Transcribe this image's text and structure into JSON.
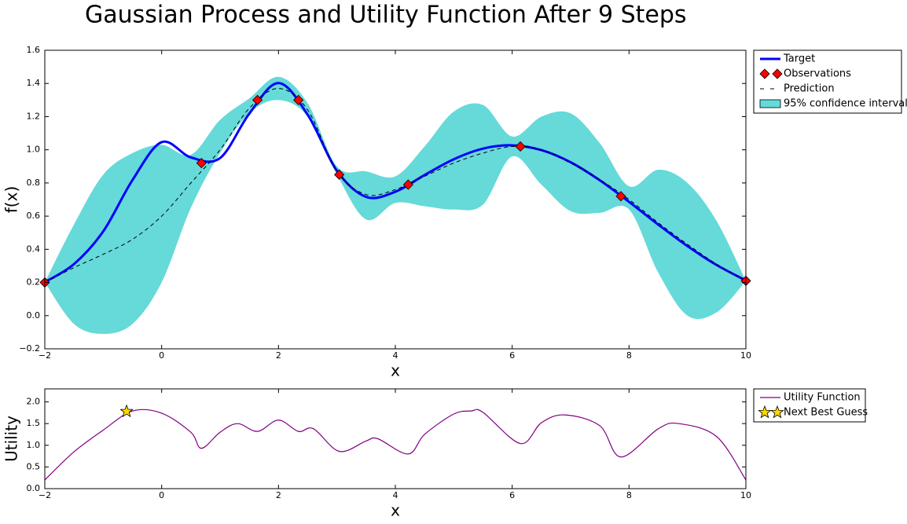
{
  "chart_data": [
    {
      "type": "line",
      "title": "Gaussian Process and Utility Function After 9 Steps",
      "xlabel": "x",
      "ylabel": "f(x)",
      "xlim": [
        -2,
        10
      ],
      "ylim": [
        -0.2,
        1.6
      ],
      "xticks": [
        {
          "value": -2,
          "label": "−2"
        },
        0,
        2,
        4,
        6,
        8,
        10
      ],
      "yticks": [
        {
          "value": -0.2,
          "label": "−0.2"
        },
        {
          "value": 0,
          "label": "0.0"
        },
        0.2,
        0.4,
        0.6,
        0.8,
        {
          "value": 1,
          "label": "1.0"
        },
        1.2,
        1.4,
        1.6
      ],
      "x": [
        -2,
        -1.5,
        -1,
        -0.5,
        0,
        0.5,
        1,
        1.5,
        2,
        2.5,
        3,
        3.5,
        4,
        4.5,
        5,
        5.5,
        6,
        6.5,
        7,
        7.5,
        8,
        8.5,
        9,
        9.5,
        10
      ],
      "band": {
        "name": "95% confidence interval",
        "color": "#66d9d9",
        "upper": [
          0.2,
          0.55,
          0.85,
          0.98,
          1.03,
          0.97,
          1.18,
          1.31,
          1.44,
          1.28,
          0.9,
          0.87,
          0.84,
          1.02,
          1.23,
          1.27,
          1.08,
          1.2,
          1.22,
          1.04,
          0.78,
          0.88,
          0.8,
          0.57,
          0.21
        ],
        "lower": [
          0.2,
          -0.05,
          -0.11,
          -0.05,
          0.2,
          0.65,
          0.98,
          1.22,
          1.3,
          1.2,
          0.85,
          0.58,
          0.68,
          0.66,
          0.64,
          0.67,
          0.96,
          0.79,
          0.63,
          0.62,
          0.64,
          0.26,
          0.0,
          0.02,
          0.21
        ]
      },
      "series": [
        {
          "name": "Target",
          "color": "#0000ff",
          "linestyle": "-",
          "values": [
            0.202,
            0.311,
            0.508,
            0.817,
            1.046,
            0.954,
            0.95,
            1.218,
            1.402,
            1.211,
            0.874,
            0.716,
            0.747,
            0.848,
            0.943,
            1.007,
            1.027,
            0.998,
            0.925,
            0.816,
            0.686,
            0.549,
            0.419,
            0.305,
            0.212
          ]
        },
        {
          "name": "Prediction",
          "color": "#000000",
          "linestyle": "--",
          "values": [
            0.2,
            0.29,
            0.37,
            0.46,
            0.6,
            0.8,
            1.0,
            1.25,
            1.37,
            1.24,
            0.87,
            0.73,
            0.76,
            0.84,
            0.92,
            0.98,
            1.02,
            1.0,
            0.92,
            0.82,
            0.7,
            0.56,
            0.43,
            0.31,
            0.21
          ]
        }
      ],
      "markers": {
        "name": "Observations",
        "color": "#ff0000",
        "shape": "diamond",
        "x": [
          -2,
          0.68,
          1.64,
          2.34,
          3.04,
          4.22,
          6.14,
          7.86,
          10
        ],
        "values": [
          0.2,
          0.92,
          1.3,
          1.3,
          0.85,
          0.79,
          1.02,
          0.72,
          0.21
        ]
      }
    },
    {
      "type": "line",
      "xlabel": "x",
      "ylabel": "Utility",
      "xlim": [
        -2,
        10
      ],
      "ylim": [
        0,
        2.3
      ],
      "xticks": [
        {
          "value": -2,
          "label": "−2"
        },
        0,
        2,
        4,
        6,
        8,
        10
      ],
      "yticks": [
        {
          "value": 0,
          "label": "0.0"
        },
        0.5,
        {
          "value": 1,
          "label": "1.0"
        },
        1.5,
        {
          "value": 2,
          "label": "2.0"
        }
      ],
      "x": [
        -2,
        -1.5,
        -1,
        -0.5,
        0,
        0.5,
        0.68,
        1,
        1.3,
        1.64,
        2,
        2.34,
        2.6,
        3.04,
        3.5,
        3.7,
        4.22,
        4.5,
        5,
        5.3,
        5.5,
        6.14,
        6.5,
        6.9,
        7.5,
        7.86,
        8.5,
        8.85,
        9.5,
        10
      ],
      "series": [
        {
          "name": "Utility Function",
          "color": "#800080",
          "linestyle": "-",
          "values": [
            0.2,
            0.85,
            1.35,
            1.79,
            1.74,
            1.3,
            0.93,
            1.3,
            1.5,
            1.32,
            1.58,
            1.32,
            1.38,
            0.86,
            1.1,
            1.15,
            0.8,
            1.25,
            1.72,
            1.79,
            1.76,
            1.04,
            1.52,
            1.7,
            1.45,
            0.73,
            1.38,
            1.5,
            1.2,
            0.2
          ]
        }
      ],
      "markers": {
        "name": "Next Best Guess",
        "color": "#ffd700",
        "shape": "star",
        "x": [
          -0.6
        ],
        "values": [
          1.78
        ]
      }
    }
  ]
}
